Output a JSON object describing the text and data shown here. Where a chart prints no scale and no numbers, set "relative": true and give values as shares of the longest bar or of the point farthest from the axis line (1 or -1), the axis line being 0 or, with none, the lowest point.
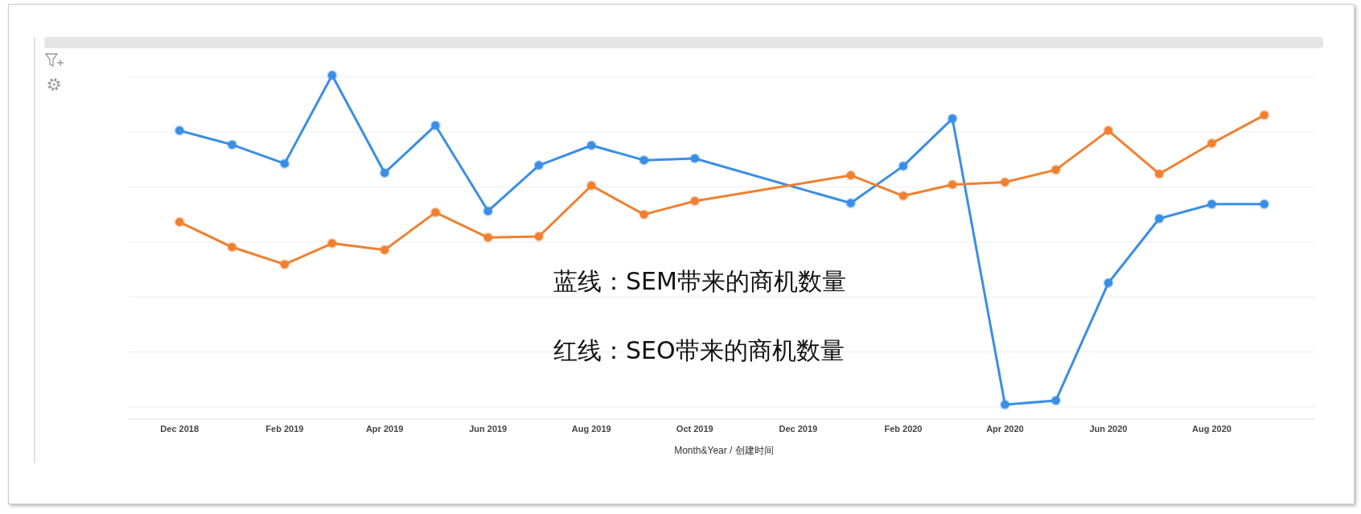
{
  "chart_data": {
    "type": "line",
    "relative": true,
    "xlabel": "Month&Year / 创建时间",
    "x": [
      "2018-12",
      "2019-01",
      "2019-02",
      "2019-03",
      "2019-04",
      "2019-05",
      "2019-06",
      "2019-07",
      "2019-08",
      "2019-09",
      "2019-10",
      "2020-01",
      "2020-02",
      "2020-03",
      "2020-04",
      "2020-05",
      "2020-06",
      "2020-07",
      "2020-08",
      "2020-09"
    ],
    "xlim": [
      "2018-11",
      "2020-10"
    ],
    "xticks": [
      {
        "value": "2018-12",
        "label": "Dec 2018"
      },
      {
        "value": "2019-02",
        "label": "Feb 2019"
      },
      {
        "value": "2019-04",
        "label": "Apr 2019"
      },
      {
        "value": "2019-06",
        "label": "Jun 2019"
      },
      {
        "value": "2019-08",
        "label": "Aug 2019"
      },
      {
        "value": "2019-10",
        "label": "Oct 2019"
      },
      {
        "value": "2019-12",
        "label": "Dec 2019"
      },
      {
        "value": "2020-02",
        "label": "Feb 2020"
      },
      {
        "value": "2020-04",
        "label": "Apr 2020"
      },
      {
        "value": "2020-06",
        "label": "Jun 2020"
      },
      {
        "value": "2020-08",
        "label": "Aug 2020"
      }
    ],
    "series": [
      {
        "color": "#3a8ee6",
        "values": [
          0.839,
          0.798,
          0.743,
          1,
          0.716,
          0.854,
          0.605,
          0.738,
          0.796,
          0.753,
          0.758,
          0.628,
          0.736,
          0.874,
          0.042,
          0.054,
          0.396,
          0.583,
          0.625,
          0.625
        ]
      },
      {
        "color": "#f08030",
        "values": [
          0.573,
          0.5,
          0.45,
          0.511,
          0.492,
          0.601,
          0.528,
          0.531,
          0.679,
          0.595,
          0.634,
          0.709,
          0.649,
          0.682,
          0.689,
          0.725,
          0.839,
          0.713,
          0.802,
          0.884
        ]
      }
    ],
    "annotations": [
      "蓝线：SEM带来的商机数量",
      "红线：SEO带来的商机数量"
    ],
    "grid": "y",
    "marker": "circle",
    "line_style": "solid"
  }
}
